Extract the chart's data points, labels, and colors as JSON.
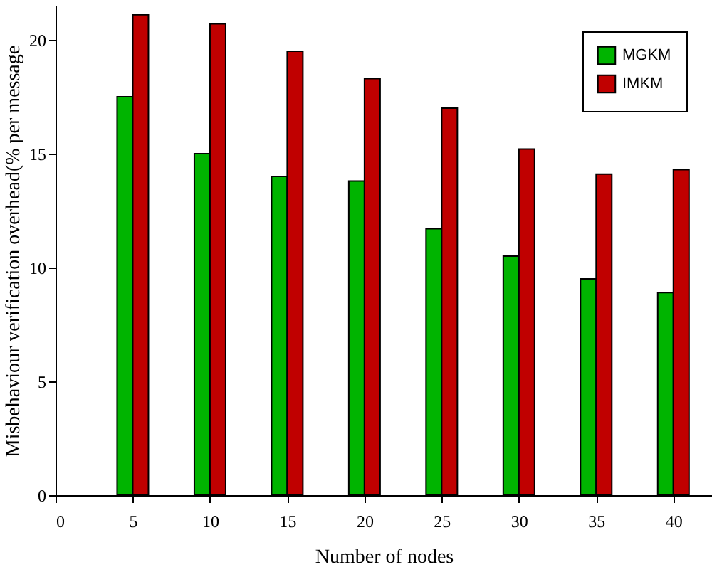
{
  "chart_data": {
    "type": "bar",
    "x": [
      5,
      10,
      15,
      20,
      25,
      30,
      35,
      40
    ],
    "series": [
      {
        "name": "MGKM",
        "color": "#00b400",
        "values": [
          17.5,
          15.0,
          14.0,
          13.8,
          11.7,
          10.5,
          9.5,
          8.9
        ]
      },
      {
        "name": "IMKM",
        "color": "#c00000",
        "values": [
          21.1,
          20.7,
          19.5,
          18.3,
          17.0,
          15.2,
          14.1,
          14.3
        ]
      }
    ],
    "xlim": [
      0,
      42.5
    ],
    "xticks": [
      0,
      5,
      10,
      15,
      20,
      25,
      30,
      35,
      40
    ],
    "ylim": [
      0,
      21.5
    ],
    "yticks": [
      0,
      5,
      10,
      15,
      20
    ],
    "xlabel": "Number of nodes",
    "ylabel": "Misbehaviour verification overhead(% per message",
    "legend": "top right",
    "grid": false
  }
}
